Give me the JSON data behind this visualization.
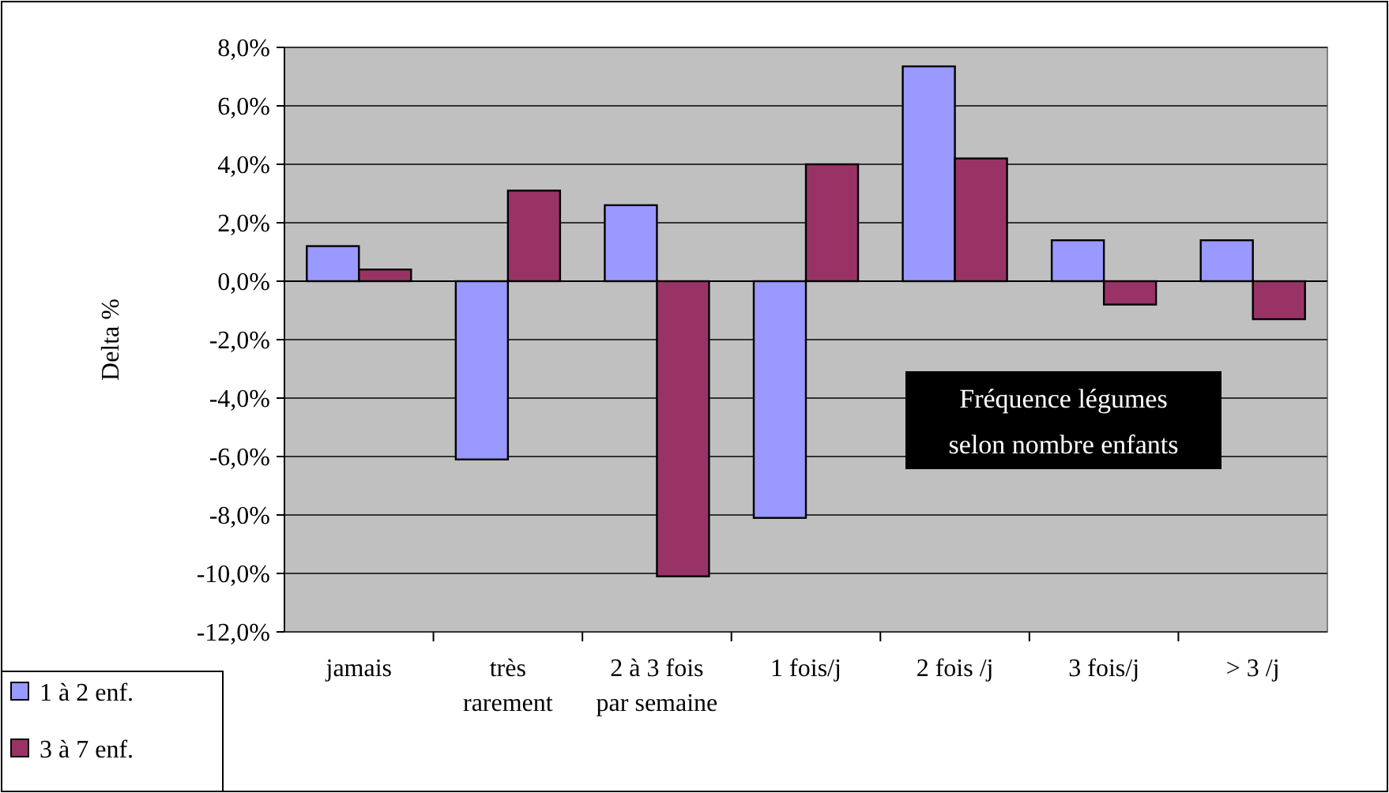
{
  "chart_data": {
    "type": "bar",
    "title": "Fréquence légumes selon nombre enfants",
    "ylabel": "Delta %",
    "categories": [
      "jamais",
      "très rarement",
      "2 à 3 fois par semaine",
      "1 fois/j",
      "2 fois /j",
      "3 fois/j",
      "> 3 /j"
    ],
    "series": [
      {
        "name": "1 à 2 enf.",
        "color": "#9999ff",
        "values": [
          1.2,
          -6.1,
          2.6,
          -8.1,
          7.35,
          1.4,
          1.4
        ]
      },
      {
        "name": "3 à 7 enf.",
        "color": "#993366",
        "values": [
          0.4,
          3.1,
          -10.1,
          4.0,
          4.2,
          -0.8,
          -1.3
        ]
      }
    ],
    "ylim": [
      -12,
      8
    ],
    "yticks": [
      {
        "value": -12,
        "label": "-12,0%"
      },
      {
        "value": -10,
        "label": "-10,0%"
      },
      {
        "value": -8,
        "label": "-8,0%"
      },
      {
        "value": -6,
        "label": "-6,0%"
      },
      {
        "value": -4,
        "label": "-4,0%"
      },
      {
        "value": -2,
        "label": "-2,0%"
      },
      {
        "value": 0,
        "label": "0,0%"
      },
      {
        "value": 2,
        "label": "2,0%"
      },
      {
        "value": 4,
        "label": "4,0%"
      },
      {
        "value": 6,
        "label": "6,0%"
      },
      {
        "value": 8,
        "label": "8,0%"
      }
    ],
    "grid": "y",
    "legend": "bottom left"
  }
}
